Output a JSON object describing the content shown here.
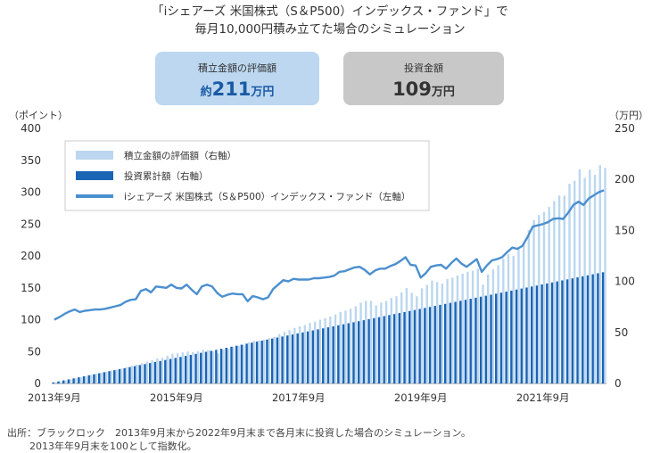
{
  "header": {
    "title_line1": "「iシェアーズ 米国株式（S＆P500）インデックス・ファンド」で",
    "title_line2": "毎月10,000円積み立てた場合のシミュレーション"
  },
  "summary": {
    "valuation_label": "積立金額の評価額",
    "valuation_prefix": "約",
    "valuation_value": "211",
    "valuation_unit": "万円",
    "invested_label": "投資金額",
    "invested_value": "109",
    "invested_unit": "万円"
  },
  "footnote": {
    "line1": "出所：ブラックロック　2013年9月末から2022年9月末まで各月末に投資した場合のシミュレーション。",
    "line2": "2013年年9月末を100として指数化。"
  },
  "colors": {
    "valuation_bar": "#bcd7ef",
    "invested_bar": "#1a64b4",
    "index_line": "#4b8fcf"
  },
  "chart_data": {
    "type": "bar",
    "x_tick_labels": [
      "2013年9月",
      "2015年9月",
      "2017年9月",
      "2019年9月",
      "2021年9月"
    ],
    "x_tick_index": [
      0,
      24,
      48,
      72,
      96
    ],
    "left_axis": {
      "label": "（ポイント）",
      "ylim": [
        0,
        400
      ],
      "ticks": [
        0,
        50,
        100,
        150,
        200,
        250,
        300,
        350,
        400
      ]
    },
    "right_axis": {
      "label": "（万円）",
      "ylim": [
        0,
        250
      ],
      "ticks": [
        0,
        50,
        100,
        150,
        200,
        250
      ]
    },
    "grid": false,
    "legend_position": "top-left",
    "months": 109,
    "series": [
      {
        "name": "積立金額の評価額（右軸）",
        "type": "bar",
        "axis": "right",
        "values": [
          1.0,
          2.0,
          3.0,
          4.0,
          5.0,
          6.0,
          7.2,
          8.4,
          9.5,
          10.5,
          11.5,
          12.6,
          13.5,
          14.6,
          16.0,
          17.3,
          18.5,
          19.8,
          21.5,
          22.7,
          24.5,
          25.2,
          27.1,
          29.1,
          29.5,
          30.4,
          31.3,
          30.7,
          31.5,
          32.9,
          32.7,
          31.6,
          29.5,
          33.2,
          34.2,
          35.7,
          36.9,
          37.8,
          40.2,
          41.8,
          42.0,
          43.0,
          44.3,
          45.6,
          48.5,
          50.5,
          52.2,
          54.4,
          55.9,
          57.2,
          59.2,
          60.5,
          62.5,
          63.9,
          65.6,
          67.7,
          70.1,
          71.4,
          73.2,
          75.7,
          79.1,
          80.9,
          80.8,
          76.5,
          79.3,
          80.9,
          83.8,
          85.5,
          89.2,
          93.6,
          88.9,
          85.5,
          93.3,
          96.7,
          100.8,
          99.5,
          97.8,
          102.2,
          103.6,
          105.8,
          107.6,
          109.5,
          110.6,
          112.4,
          96.9,
          106.9,
          111.8,
          115.9,
          122.3,
          126.6,
          125.2,
          131.1,
          138.2,
          150.5,
          160.3,
          165.0,
          168.1,
          173.0,
          178.8,
          184.3,
          184.1,
          195.8,
          198.6,
          210.0,
          201.4,
          209.5,
          204.5,
          213.9,
          211.3
        ],
        "color": "#bcd7ef"
      },
      {
        "name": "投資累計額（右軸）",
        "type": "bar",
        "axis": "right",
        "values": [
          1,
          2,
          3,
          4,
          5,
          6,
          7,
          8,
          9,
          10,
          11,
          12,
          13,
          14,
          15,
          16,
          17,
          18,
          19,
          20,
          21,
          22,
          23,
          24,
          25,
          26,
          27,
          28,
          29,
          30,
          31,
          32,
          33,
          34,
          35,
          36,
          37,
          38,
          39,
          40,
          41,
          42,
          43,
          44,
          45,
          46,
          47,
          48,
          49,
          50,
          51,
          52,
          53,
          54,
          55,
          56,
          57,
          58,
          59,
          60,
          61,
          62,
          63,
          64,
          65,
          66,
          67,
          68,
          69,
          70,
          71,
          72,
          73,
          74,
          75,
          76,
          77,
          78,
          79,
          80,
          81,
          82,
          83,
          84,
          85,
          86,
          87,
          88,
          89,
          90,
          91,
          92,
          93,
          94,
          95,
          96,
          97,
          98,
          99,
          100,
          101,
          102,
          103,
          104,
          105,
          106,
          107,
          108,
          109
        ],
        "color": "#1a64b4"
      },
      {
        "name": "iシェアーズ 米国株式（S＆P500）インデックス・ファンド（左軸）",
        "type": "line",
        "axis": "left",
        "values": [
          100,
          104,
          109,
          113,
          116,
          112,
          114,
          115,
          116,
          116,
          117,
          119,
          121,
          123,
          128,
          131,
          132,
          145,
          148,
          143,
          152,
          151,
          150,
          155,
          150,
          149,
          155,
          147,
          140,
          152,
          155,
          152,
          142,
          136,
          139,
          141,
          140,
          140,
          129,
          137,
          135,
          132,
          135,
          148,
          155,
          162,
          160,
          164,
          163,
          163,
          163,
          165,
          165,
          166,
          167,
          169,
          175,
          176,
          179,
          182,
          183,
          178,
          171,
          177,
          180,
          180,
          184,
          187,
          192,
          198,
          186,
          185,
          166,
          173,
          183,
          185,
          186,
          180,
          189,
          196,
          188,
          183,
          189,
          195,
          175,
          185,
          193,
          195,
          198,
          206,
          213,
          211,
          216,
          230,
          246,
          248,
          250,
          253,
          258,
          259,
          258,
          268,
          280,
          285,
          280,
          290,
          295,
          300,
          303
        ]
      }
    ]
  }
}
